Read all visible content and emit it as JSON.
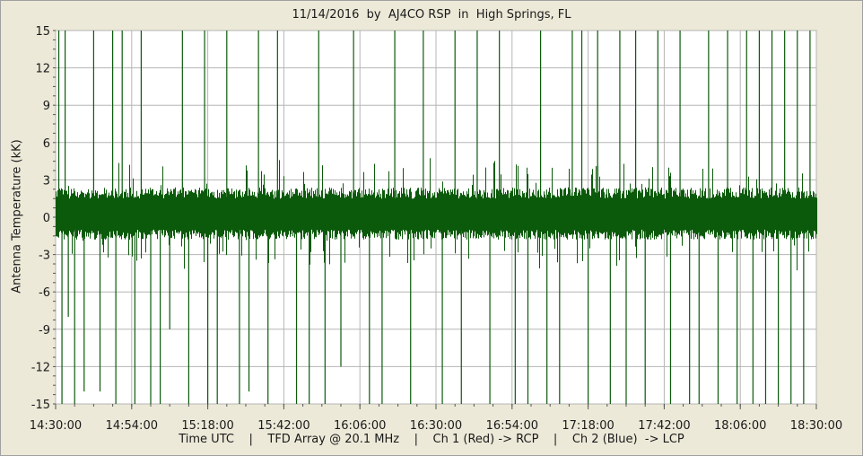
{
  "chart_data": {
    "type": "line",
    "title": "11/14/2016  by  AJ4CO RSP  in  High Springs, FL",
    "ylabel": "Antenna Temperature (kK)",
    "footer": "Time UTC    |    TFD Array @ 20.1 MHz    |    Ch 1 (Red) -> RCP    |    Ch 2 (Blue)  -> LCP",
    "ylim": [
      -15,
      15
    ],
    "yticks": [
      "15",
      "12",
      "9",
      "6",
      "3",
      "0",
      "-3",
      "-6",
      "-9",
      "-12",
      "-15"
    ],
    "xlim": [
      "14:30:00",
      "18:30:00"
    ],
    "xticks": [
      "14:30:00",
      "14:54:00",
      "15:18:00",
      "15:42:00",
      "16:06:00",
      "16:30:00",
      "16:54:00",
      "17:18:00",
      "17:42:00",
      "18:06:00",
      "18:30:00"
    ],
    "grid": true,
    "series": [
      {
        "color": "#0b5a0b",
        "baseline_noise_kK": [
          -1.0,
          1.5
        ],
        "spikes": [
          {
            "t": "14:31:00",
            "v": 15
          },
          {
            "t": "14:32:00",
            "v": -15
          },
          {
            "t": "14:33:00",
            "v": 15
          },
          {
            "t": "14:34:00",
            "v": -8
          },
          {
            "t": "14:36:00",
            "v": -15
          },
          {
            "t": "14:39:00",
            "v": -14
          },
          {
            "t": "14:42:00",
            "v": 15
          },
          {
            "t": "14:44:00",
            "v": -14
          },
          {
            "t": "14:48:00",
            "v": 15
          },
          {
            "t": "14:49:00",
            "v": -15
          },
          {
            "t": "14:51:00",
            "v": 15
          },
          {
            "t": "14:55:00",
            "v": -15
          },
          {
            "t": "14:57:00",
            "v": 15
          },
          {
            "t": "15:00:00",
            "v": -15
          },
          {
            "t": "15:03:00",
            "v": -15
          },
          {
            "t": "15:06:00",
            "v": -9
          },
          {
            "t": "15:10:00",
            "v": 15
          },
          {
            "t": "15:12:00",
            "v": -15
          },
          {
            "t": "15:17:00",
            "v": 15
          },
          {
            "t": "15:18:00",
            "v": -15
          },
          {
            "t": "15:21:00",
            "v": -15
          },
          {
            "t": "15:24:00",
            "v": 15
          },
          {
            "t": "15:28:00",
            "v": -15
          },
          {
            "t": "15:31:00",
            "v": -14
          },
          {
            "t": "15:34:00",
            "v": 15
          },
          {
            "t": "15:37:00",
            "v": -15
          },
          {
            "t": "15:40:00",
            "v": 15
          },
          {
            "t": "15:46:00",
            "v": -15
          },
          {
            "t": "15:50:00",
            "v": -15
          },
          {
            "t": "15:53:00",
            "v": 15
          },
          {
            "t": "15:55:00",
            "v": -15
          },
          {
            "t": "16:00:00",
            "v": -12
          },
          {
            "t": "16:04:00",
            "v": 15
          },
          {
            "t": "16:09:00",
            "v": -15
          },
          {
            "t": "16:13:00",
            "v": -15
          },
          {
            "t": "16:17:00",
            "v": 15
          },
          {
            "t": "16:22:00",
            "v": -15
          },
          {
            "t": "16:26:00",
            "v": 15
          },
          {
            "t": "16:32:00",
            "v": -15
          },
          {
            "t": "16:36:00",
            "v": 15
          },
          {
            "t": "16:38:00",
            "v": -15
          },
          {
            "t": "16:43:00",
            "v": 15
          },
          {
            "t": "16:47:00",
            "v": -15
          },
          {
            "t": "16:50:00",
            "v": 15
          },
          {
            "t": "16:55:00",
            "v": -15
          },
          {
            "t": "16:59:00",
            "v": -15
          },
          {
            "t": "17:03:00",
            "v": 15
          },
          {
            "t": "17:05:00",
            "v": -15
          },
          {
            "t": "17:09:00",
            "v": -15
          },
          {
            "t": "17:13:00",
            "v": 15
          },
          {
            "t": "17:16:00",
            "v": 15
          },
          {
            "t": "17:18:00",
            "v": -15
          },
          {
            "t": "17:21:00",
            "v": 15
          },
          {
            "t": "17:25:00",
            "v": -15
          },
          {
            "t": "17:28:00",
            "v": 15
          },
          {
            "t": "17:30:00",
            "v": -15
          },
          {
            "t": "17:33:00",
            "v": 15
          },
          {
            "t": "17:36:00",
            "v": -15
          },
          {
            "t": "17:40:00",
            "v": 15
          },
          {
            "t": "17:44:00",
            "v": -15
          },
          {
            "t": "17:47:00",
            "v": 15
          },
          {
            "t": "17:50:00",
            "v": -15
          },
          {
            "t": "17:53:00",
            "v": -15
          },
          {
            "t": "17:56:00",
            "v": 15
          },
          {
            "t": "17:59:00",
            "v": -15
          },
          {
            "t": "18:02:00",
            "v": 15
          },
          {
            "t": "18:05:00",
            "v": -15
          },
          {
            "t": "18:08:00",
            "v": 15
          },
          {
            "t": "18:10:00",
            "v": -15
          },
          {
            "t": "18:12:00",
            "v": 15
          },
          {
            "t": "18:14:00",
            "v": -15
          },
          {
            "t": "18:16:00",
            "v": 15
          },
          {
            "t": "18:18:00",
            "v": -15
          },
          {
            "t": "18:20:00",
            "v": 15
          },
          {
            "t": "18:22:00",
            "v": -15
          },
          {
            "t": "18:24:00",
            "v": 15
          },
          {
            "t": "18:26:00",
            "v": -15
          },
          {
            "t": "18:28:00",
            "v": 15
          }
        ]
      }
    ]
  }
}
